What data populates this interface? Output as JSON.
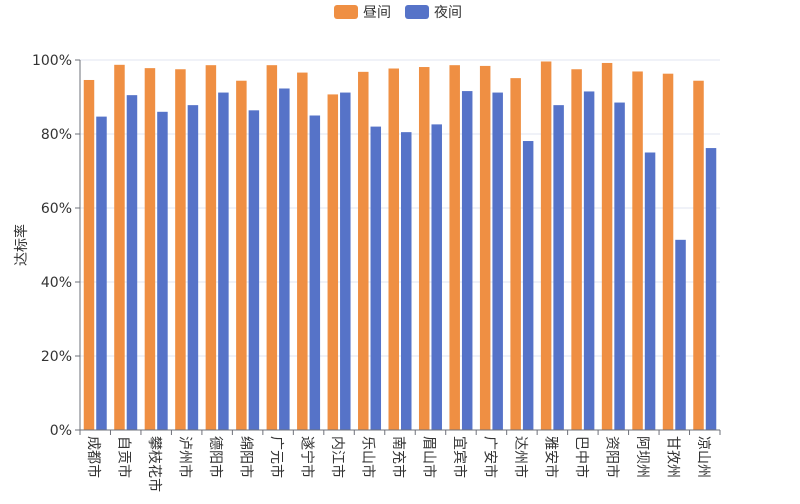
{
  "chart_data": {
    "type": "bar",
    "title": "",
    "xlabel": "",
    "ylabel": "达标率",
    "ylim": [
      0,
      100
    ],
    "yticks": [
      "0%",
      "20%",
      "40%",
      "60%",
      "80%",
      "100%"
    ],
    "legend_position": "top-center",
    "grid": true,
    "categories": [
      "成都市",
      "自贡市",
      "攀枝花市",
      "泸州市",
      "德阳市",
      "绵阳市",
      "广元市",
      "遂宁市",
      "内江市",
      "乐山市",
      "南充市",
      "眉山市",
      "宜宾市",
      "广安市",
      "达州市",
      "雅安市",
      "巴中市",
      "资阳市",
      "阿坝州",
      "甘孜州",
      "凉山州"
    ],
    "series": [
      {
        "name": "昼间",
        "color": "#EF8F43",
        "values": [
          94.6,
          98.7,
          97.8,
          97.5,
          98.6,
          94.4,
          98.6,
          96.6,
          90.7,
          96.8,
          97.7,
          98.1,
          98.6,
          98.4,
          95.1,
          99.6,
          97.5,
          99.2,
          96.9,
          96.3,
          94.4
        ]
      },
      {
        "name": "夜间",
        "color": "#5673C8",
        "values": [
          84.7,
          90.5,
          86.0,
          87.8,
          91.2,
          86.4,
          92.3,
          85.0,
          91.2,
          82.0,
          80.5,
          82.6,
          91.6,
          91.2,
          78.1,
          87.8,
          91.5,
          88.5,
          75.0,
          51.4,
          76.2
        ]
      }
    ]
  }
}
